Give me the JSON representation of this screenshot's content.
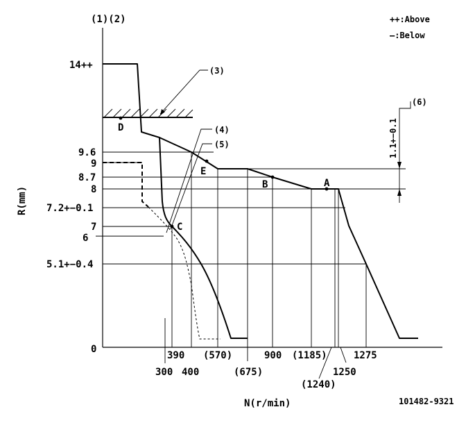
{
  "header": {
    "ref_label": "(1)(2)",
    "legend_above": "++:Above",
    "legend_below": "—:Below"
  },
  "axes": {
    "ylabel": "R(mm)",
    "xlabel": "N(r/min)"
  },
  "y_ticks": {
    "t14": "14++",
    "t96": "9.6",
    "t9": "9",
    "t87": "8.7",
    "t8": "8",
    "t72": "7.2+−0.1",
    "t7": "7",
    "t6": "6",
    "t51": "5.1+−0.4",
    "t0": "0"
  },
  "x_ticks": {
    "x300": "300",
    "x390": "390",
    "x400": "400",
    "x570": "(570)",
    "x675": "(675)",
    "x900": "900",
    "x1185": "(1185)",
    "x1240": "(1240)",
    "x1250": "1250",
    "x1275": "1275"
  },
  "points": {
    "A": "A",
    "B": "B",
    "C": "C",
    "D": "D",
    "E": "E"
  },
  "callouts": {
    "c3": "(3)",
    "c4": "(4)",
    "c5": "(5)",
    "c6": "(6)",
    "tol": "1.1+−0.1"
  },
  "footer": {
    "doc_number": "101482-9321"
  }
}
